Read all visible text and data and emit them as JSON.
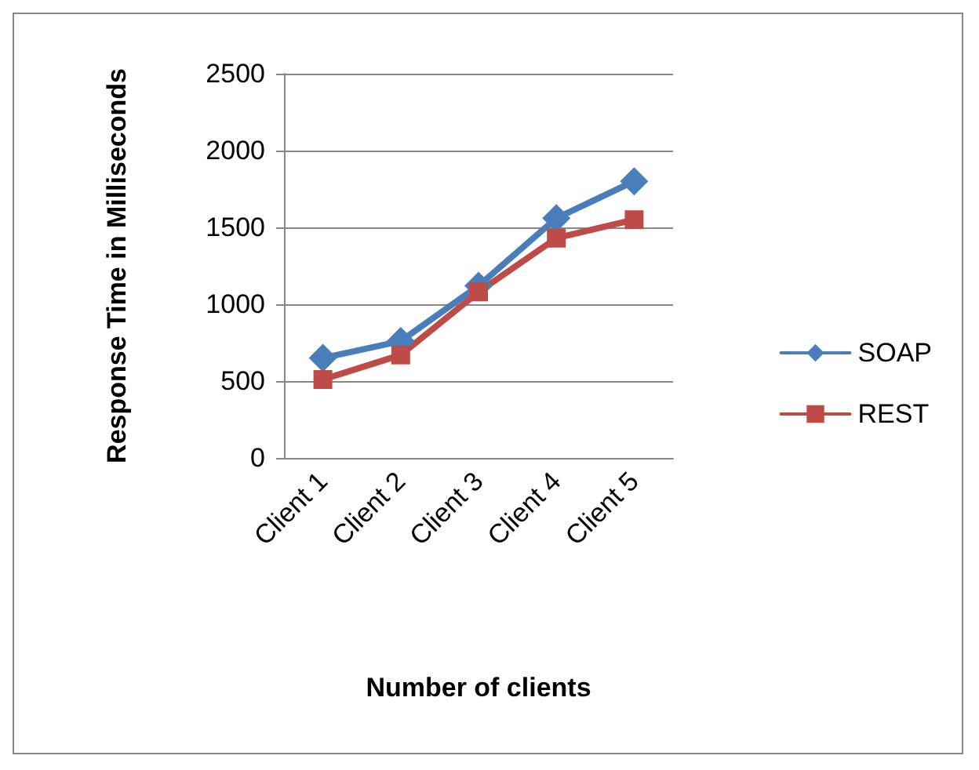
{
  "chart_data": {
    "type": "line",
    "xlabel": "Number of clients",
    "ylabel": "Response Time in Milliseconds",
    "categories": [
      "Client 1",
      "Client 2",
      "Client 3",
      "Client 4",
      "Client 5"
    ],
    "series": [
      {
        "name": "SOAP",
        "color": "#4a7ebb",
        "values": [
          650,
          760,
          1120,
          1560,
          1800
        ],
        "marker": "diamond"
      },
      {
        "name": "REST",
        "color": "#be4b48",
        "values": [
          510,
          670,
          1080,
          1430,
          1550
        ],
        "marker": "square"
      }
    ],
    "ylim": [
      0,
      2500
    ],
    "yticks": [
      0,
      500,
      1000,
      1500,
      2000,
      2500
    ],
    "grid": "y",
    "legend": "right",
    "line_style": "solid"
  }
}
